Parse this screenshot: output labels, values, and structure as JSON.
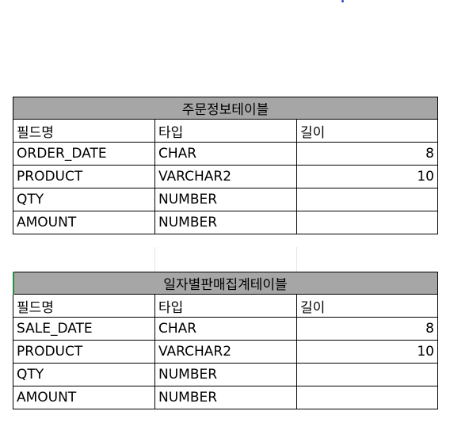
{
  "tables": [
    {
      "title": "주문정보테이블",
      "headers": [
        "필드명",
        "타입",
        "길이"
      ],
      "rows": [
        [
          "ORDER_DATE",
          "CHAR",
          "8"
        ],
        [
          "PRODUCT",
          "VARCHAR2",
          "10"
        ],
        [
          "QTY",
          "NUMBER",
          ""
        ],
        [
          "AMOUNT",
          "NUMBER",
          ""
        ]
      ]
    },
    {
      "title": "일자별판매집계테이블",
      "headers": [
        "필드명",
        "타입",
        "길이"
      ],
      "rows": [
        [
          "SALE_DATE",
          "CHAR",
          "8"
        ],
        [
          "PRODUCT",
          "VARCHAR2",
          "10"
        ],
        [
          "QTY",
          "NUMBER",
          ""
        ],
        [
          "AMOUNT",
          "NUMBER",
          ""
        ]
      ]
    }
  ],
  "colors": {
    "title_bg": "#a6a6a6",
    "selection": "#2a8c3a"
  }
}
